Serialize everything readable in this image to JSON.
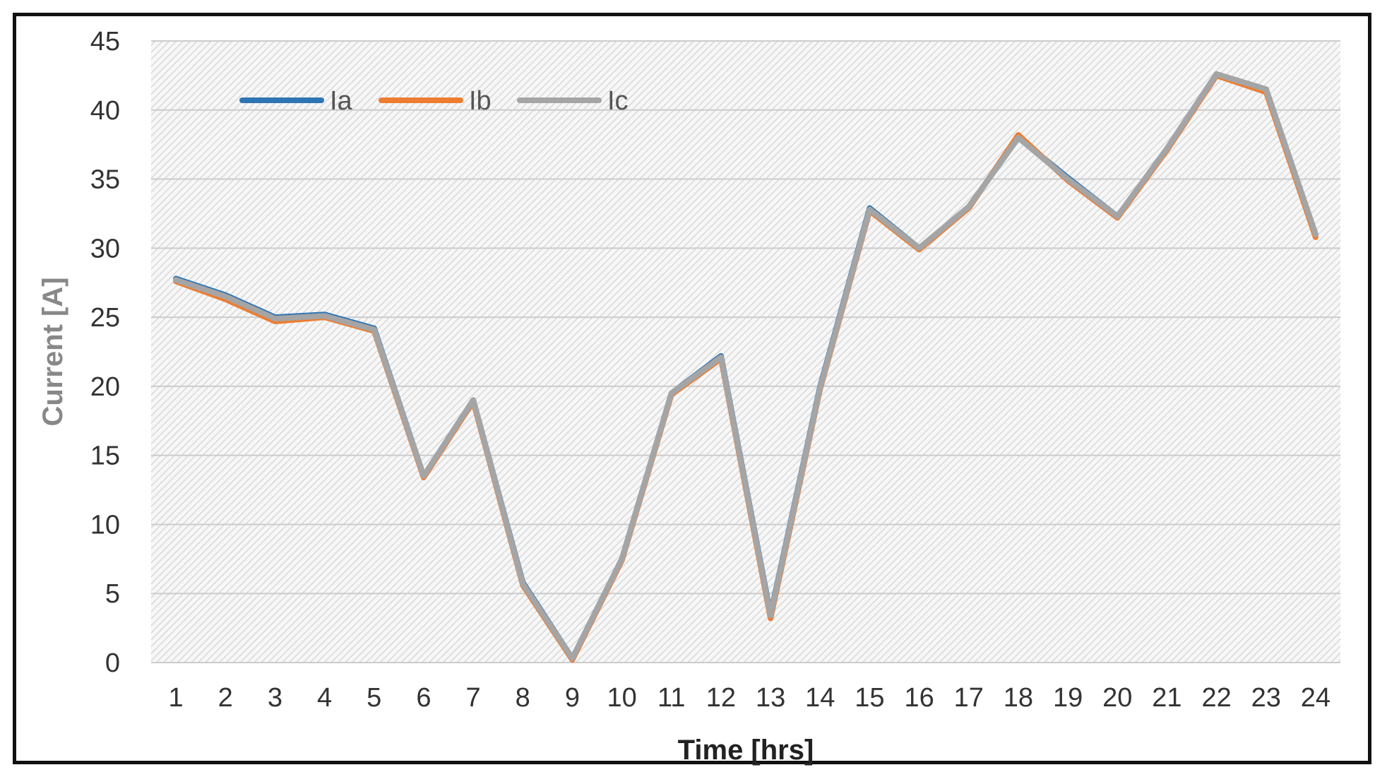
{
  "chart_data": {
    "type": "line",
    "x": [
      1,
      2,
      3,
      4,
      5,
      6,
      7,
      8,
      9,
      10,
      11,
      12,
      13,
      14,
      15,
      16,
      17,
      18,
      19,
      20,
      21,
      22,
      23,
      24
    ],
    "xlabel": "Time [hrs]",
    "ylabel": "Current [A]",
    "ylim": [
      0,
      45
    ],
    "yticks": [
      0,
      5,
      10,
      15,
      20,
      25,
      30,
      35,
      40,
      45
    ],
    "grid": true,
    "legend_position": "top-left",
    "series": [
      {
        "name": "Ia",
        "color": "#2E75B6",
        "values": [
          27.8,
          26.6,
          25.0,
          25.2,
          24.2,
          13.5,
          19.0,
          5.8,
          0.3,
          7.5,
          19.5,
          22.2,
          3.5,
          20.0,
          32.9,
          30.0,
          33.0,
          38.0,
          35.1,
          32.3,
          37.2,
          42.6,
          41.5,
          31.0
        ]
      },
      {
        "name": "Ib",
        "color": "#ED7D31",
        "values": [
          27.6,
          26.3,
          24.7,
          25.0,
          24.0,
          13.4,
          18.9,
          5.6,
          0.2,
          7.4,
          19.4,
          22.0,
          3.2,
          19.8,
          32.7,
          29.9,
          32.9,
          38.2,
          34.9,
          32.2,
          37.1,
          42.5,
          41.3,
          30.8
        ]
      },
      {
        "name": "Ic",
        "color": "#A5A5A5",
        "values": [
          27.7,
          26.5,
          24.9,
          25.1,
          24.1,
          13.5,
          19.0,
          5.7,
          0.3,
          7.5,
          19.5,
          22.1,
          3.4,
          19.9,
          32.8,
          30.0,
          33.0,
          38.0,
          35.0,
          32.3,
          37.2,
          42.6,
          41.5,
          31.0
        ]
      }
    ]
  }
}
